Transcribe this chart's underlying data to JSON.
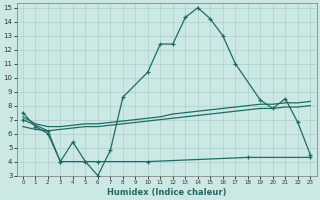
{
  "xlabel": "Humidex (Indice chaleur)",
  "bg_color": "#cce8e5",
  "grid_color": "#aad0cc",
  "line_color": "#1f6b64",
  "xlim": [
    0,
    23
  ],
  "ylim": [
    3,
    15
  ],
  "xticks": [
    0,
    1,
    2,
    3,
    4,
    5,
    6,
    7,
    8,
    9,
    10,
    11,
    12,
    13,
    14,
    15,
    16,
    17,
    18,
    19,
    20,
    21,
    22,
    23
  ],
  "yticks": [
    3,
    4,
    5,
    6,
    7,
    8,
    9,
    10,
    11,
    12,
    13,
    14,
    15
  ],
  "main_x": [
    0,
    1,
    2,
    3,
    4,
    5,
    6,
    7,
    8,
    10,
    11,
    12,
    13,
    14,
    15,
    16,
    17,
    19,
    20,
    21,
    22,
    23
  ],
  "main_y": [
    7.5,
    6.5,
    6.0,
    4.0,
    5.4,
    4.0,
    3.0,
    4.8,
    8.6,
    10.4,
    12.4,
    12.4,
    14.3,
    15.0,
    14.2,
    13.0,
    11.0,
    8.4,
    7.8,
    8.5,
    6.8,
    4.5
  ],
  "flat_x": [
    0,
    2,
    3,
    6,
    10,
    18,
    23
  ],
  "flat_y": [
    7.0,
    6.2,
    4.0,
    4.0,
    4.0,
    4.3,
    4.3
  ],
  "low_x": [
    0,
    1,
    2,
    3,
    4,
    5,
    6,
    7,
    8,
    9,
    10,
    11,
    12,
    13,
    14,
    15,
    16,
    17,
    18,
    19,
    20,
    21,
    22,
    23
  ],
  "low_y": [
    6.5,
    6.3,
    6.2,
    6.3,
    6.4,
    6.5,
    6.5,
    6.6,
    6.7,
    6.8,
    6.9,
    7.0,
    7.1,
    7.2,
    7.3,
    7.4,
    7.5,
    7.6,
    7.7,
    7.8,
    7.8,
    7.9,
    7.9,
    8.0
  ],
  "hi_x": [
    0,
    1,
    2,
    3,
    4,
    5,
    6,
    7,
    8,
    9,
    10,
    11,
    12,
    13,
    14,
    15,
    16,
    17,
    18,
    19,
    20,
    21,
    22,
    23
  ],
  "hi_y": [
    7.2,
    6.7,
    6.5,
    6.5,
    6.6,
    6.7,
    6.7,
    6.8,
    6.9,
    7.0,
    7.1,
    7.2,
    7.4,
    7.5,
    7.6,
    7.7,
    7.8,
    7.9,
    8.0,
    8.1,
    8.1,
    8.2,
    8.2,
    8.3
  ]
}
